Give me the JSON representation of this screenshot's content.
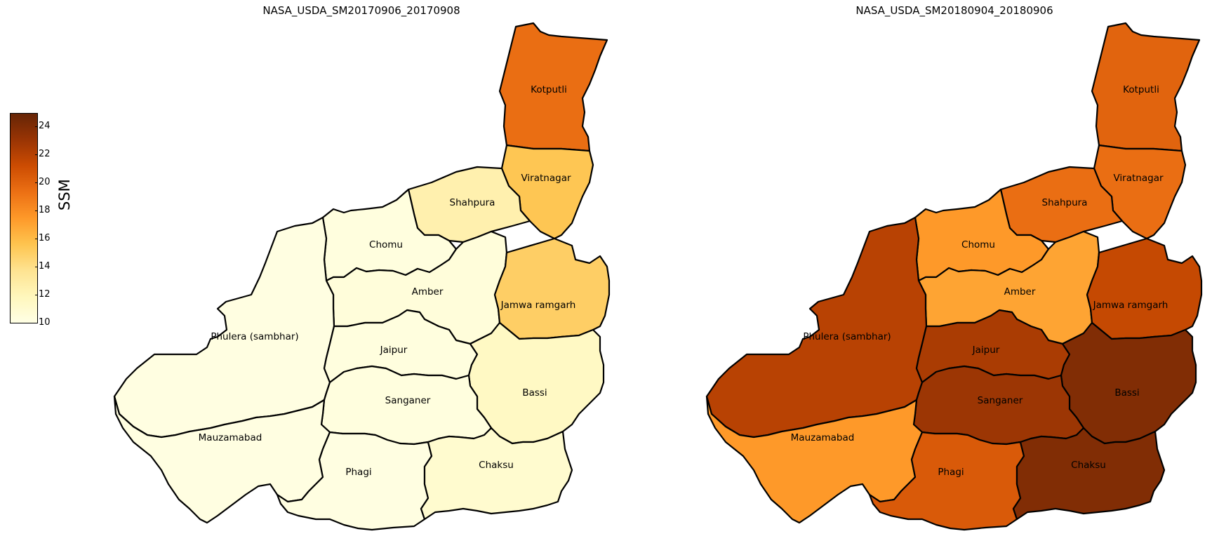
{
  "maps": [
    {
      "title": "NASA_USDA_SM20170906_20170908",
      "districts": [
        {
          "name": "Kotputli",
          "ssm": 19.5
        },
        {
          "name": "Viratnagar",
          "ssm": 15.5
        },
        {
          "name": "Shahpura",
          "ssm": 12.5
        },
        {
          "name": "Chomu",
          "ssm": 10.3
        },
        {
          "name": "Amber",
          "ssm": 10.5
        },
        {
          "name": "Jamwa ramgarh",
          "ssm": 15.0
        },
        {
          "name": "Phulera (sambhar)",
          "ssm": 10.2
        },
        {
          "name": "Jaipur",
          "ssm": 10.3
        },
        {
          "name": "Bassi",
          "ssm": 11.5
        },
        {
          "name": "Sanganer",
          "ssm": 10.3
        },
        {
          "name": "Mauzamabad",
          "ssm": 10.2
        },
        {
          "name": "Phagi",
          "ssm": 10.2
        },
        {
          "name": "Chaksu",
          "ssm": 11.0
        }
      ]
    },
    {
      "title": "NASA_USDA_SM20180904_20180906",
      "districts": [
        {
          "name": "Kotputli",
          "ssm": 20.0
        },
        {
          "name": "Viratnagar",
          "ssm": 19.5
        },
        {
          "name": "Shahpura",
          "ssm": 19.5
        },
        {
          "name": "Chomu",
          "ssm": 17.5
        },
        {
          "name": "Amber",
          "ssm": 17.0
        },
        {
          "name": "Jamwa ramgarh",
          "ssm": 21.5
        },
        {
          "name": "Phulera (sambhar)",
          "ssm": 22.0
        },
        {
          "name": "Jaipur",
          "ssm": 22.5
        },
        {
          "name": "Bassi",
          "ssm": 24.0
        },
        {
          "name": "Sanganer",
          "ssm": 23.0
        },
        {
          "name": "Mauzamabad",
          "ssm": 17.5
        },
        {
          "name": "Phagi",
          "ssm": 20.5
        },
        {
          "name": "Chaksu",
          "ssm": 24.0
        }
      ]
    }
  ],
  "colorbar": {
    "label": "SSM",
    "min": 10,
    "max": 25,
    "ticks": [
      "10",
      "12",
      "14",
      "16",
      "18",
      "20",
      "22",
      "24"
    ],
    "colormap": [
      "#ffffe5",
      "#fff7bc",
      "#fee391",
      "#fec44f",
      "#fe9929",
      "#ec7014",
      "#cc4c02",
      "#993404",
      "#662506"
    ]
  }
}
